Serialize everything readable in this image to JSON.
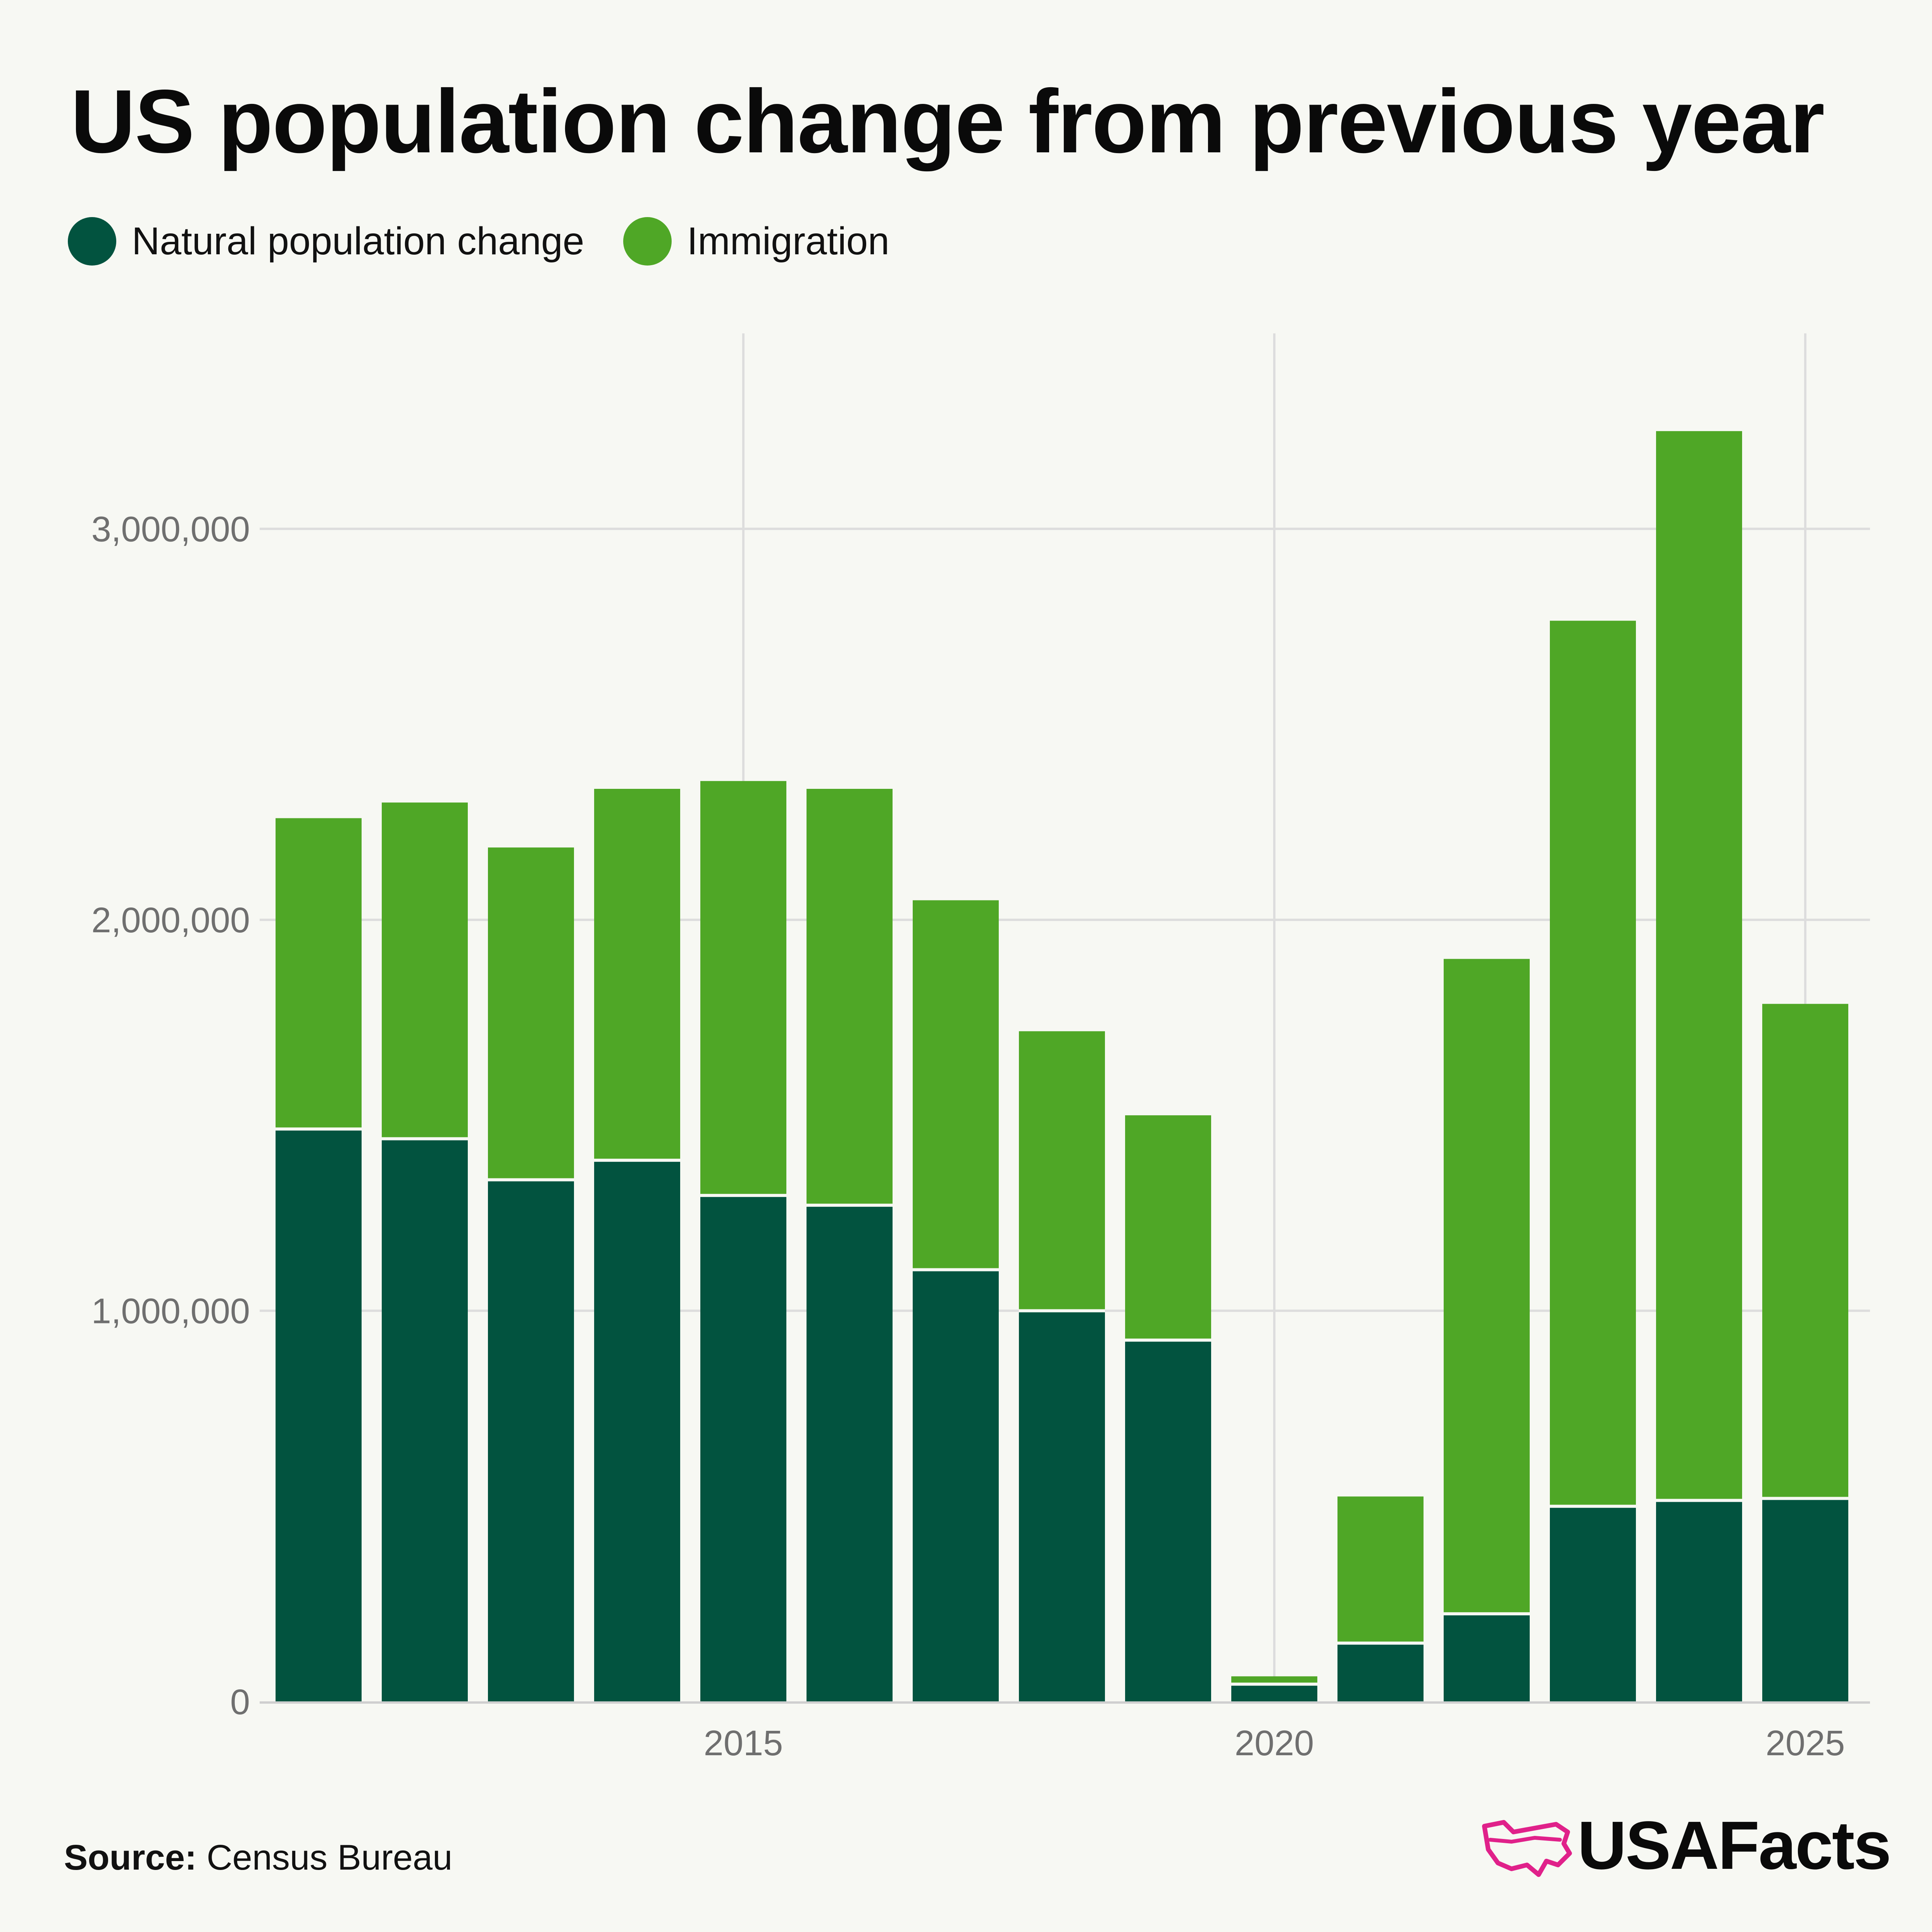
{
  "title": "US population change from previous year",
  "legend": [
    {
      "label": "Natural population change",
      "color": "#02533f"
    },
    {
      "label": "Immigration",
      "color": "#4fa726"
    }
  ],
  "source": {
    "prefix": "Source:",
    "text": "Census Bureau"
  },
  "brand": {
    "name": "USAFacts",
    "accent": "#e0218a"
  },
  "chart_data": {
    "type": "bar",
    "stacked": true,
    "x": [
      2011,
      2012,
      2013,
      2014,
      2015,
      2016,
      2017,
      2018,
      2019,
      2020,
      2021,
      2022,
      2023,
      2024,
      2025
    ],
    "series": [
      {
        "name": "Natural population change",
        "color": "#02533f",
        "values": [
          1465000,
          1440000,
          1335000,
          1385000,
          1295000,
          1270000,
          1105000,
          1000000,
          925000,
          45000,
          150000,
          225000,
          500000,
          515000,
          520000
        ]
      },
      {
        "name": "Immigration",
        "color": "#4fa726",
        "values": [
          795000,
          860000,
          850000,
          950000,
          1060000,
          1065000,
          945000,
          715000,
          575000,
          20000,
          375000,
          1675000,
          2265000,
          2735000,
          1265000
        ]
      }
    ],
    "ylim": [
      0,
      3500000
    ],
    "yticks": [
      0,
      1000000,
      2000000,
      3000000
    ],
    "ytick_labels": [
      "0",
      "1,000,000",
      "2,000,000",
      "3,000,000"
    ],
    "xticks": [
      2015,
      2020,
      2025
    ],
    "xtick_labels": [
      "2015",
      "2020",
      "2025"
    ],
    "grid": true,
    "legend_position": "top-left"
  }
}
